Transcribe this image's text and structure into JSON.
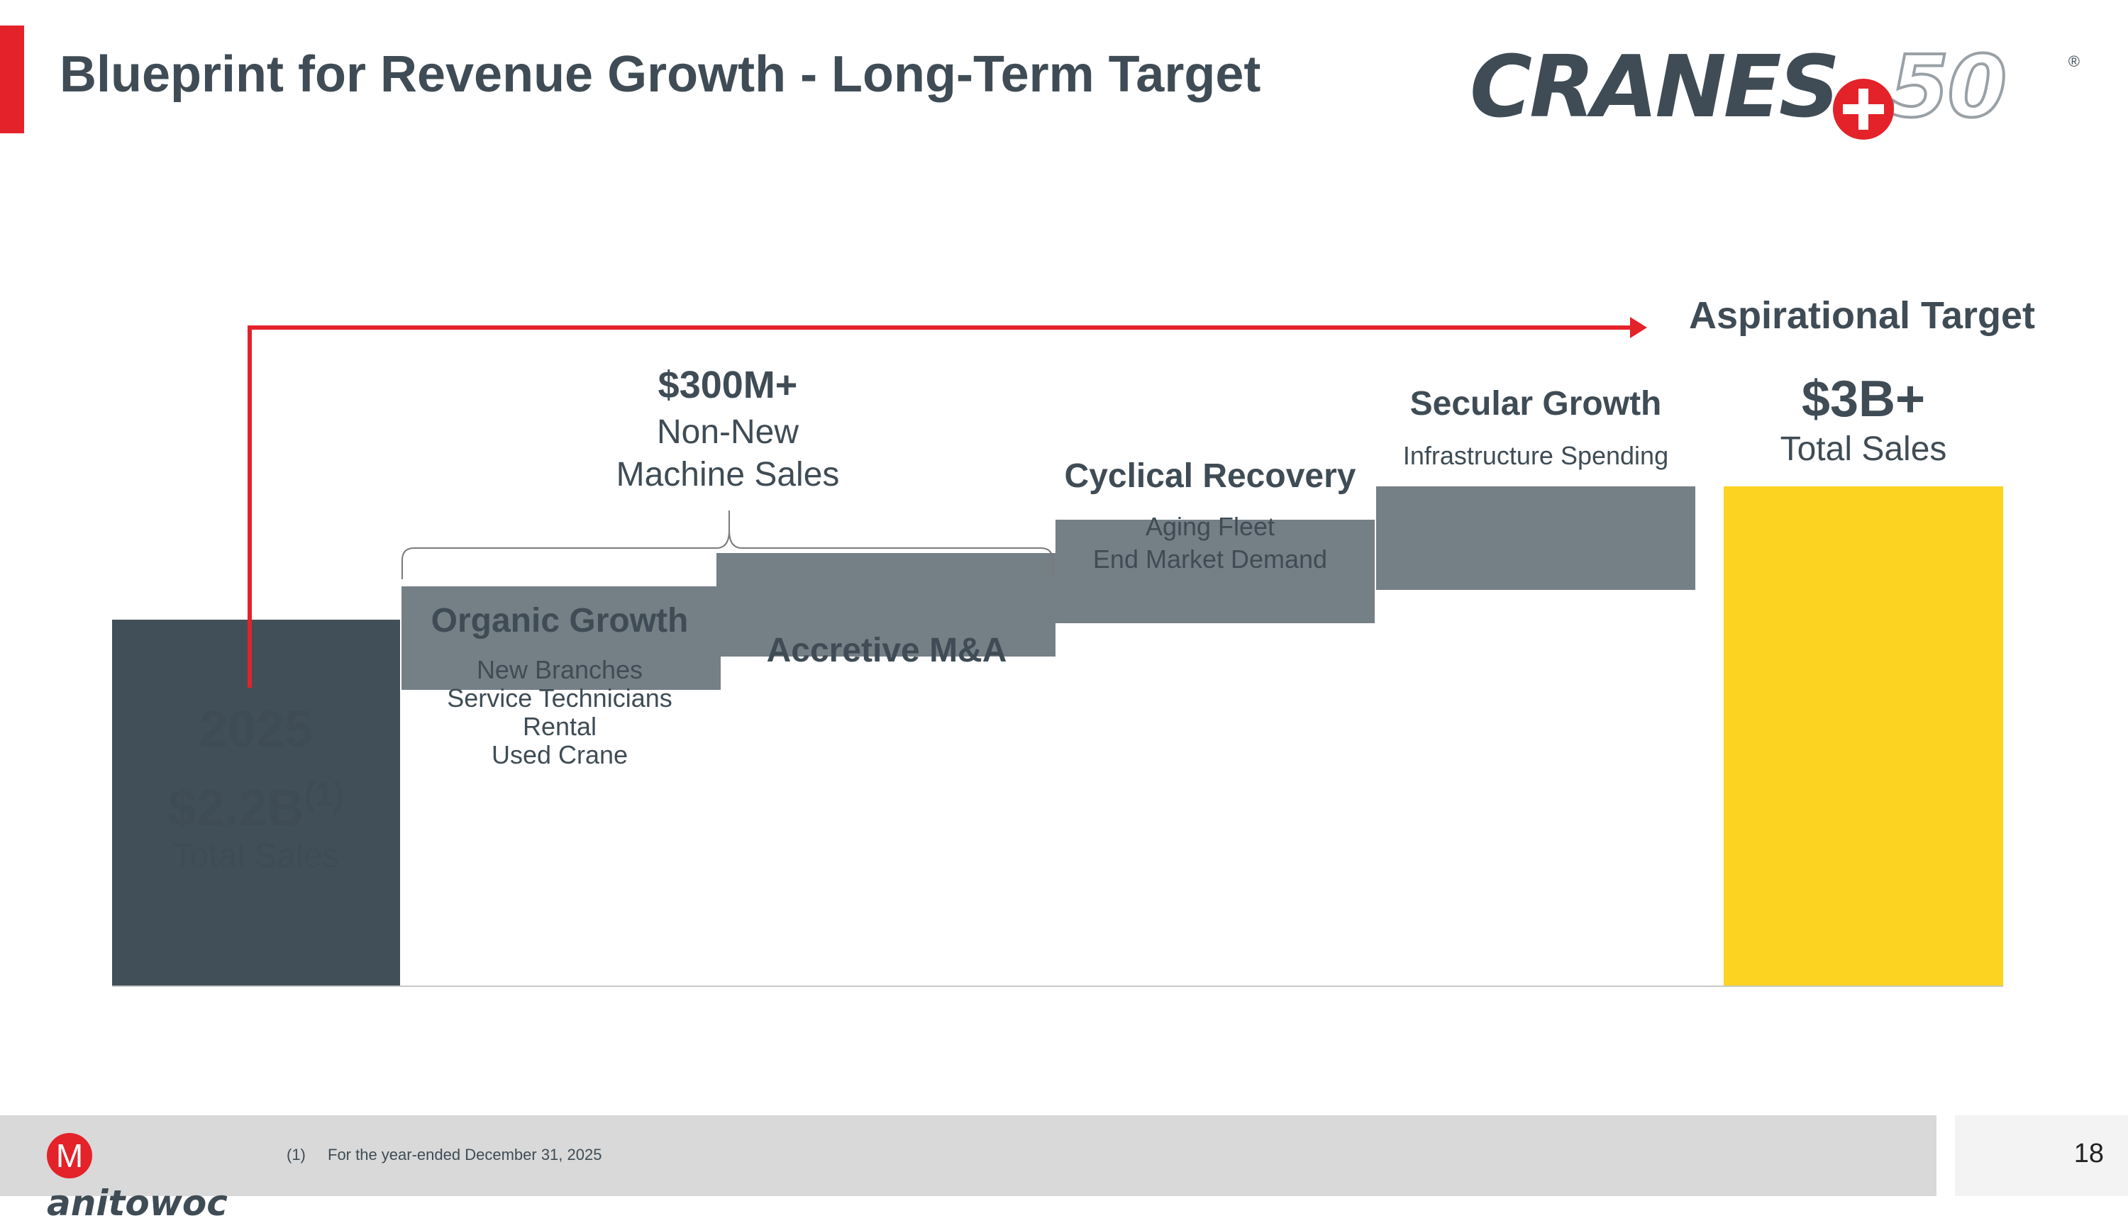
{
  "title": "Blueprint for Revenue Growth - Long-Term Target",
  "logo": {
    "text": "CRANES",
    "number": "50",
    "reg": "®"
  },
  "chart_data": {
    "type": "bar",
    "title": "",
    "colors": {
      "start": "#414f58",
      "step": "#757f86",
      "target": "#fcd321",
      "arrow": "#e42229"
    },
    "bars": [
      {
        "key": "start",
        "kind": "total",
        "value": 2.2,
        "label": "2025",
        "amount": "$2.2B",
        "superscript": "(1)",
        "caption": "Total Sales"
      },
      {
        "key": "organic",
        "kind": "step",
        "label": "Organic Growth",
        "details": [
          "New Branches",
          "Service Technicians",
          "Rental",
          "Used Crane"
        ]
      },
      {
        "key": "ma",
        "kind": "step",
        "label": "Accretive M&A",
        "details": []
      },
      {
        "key": "cyclical",
        "kind": "step",
        "label": "Cyclical Recovery",
        "details": [
          "Aging Fleet",
          "End Market Demand"
        ]
      },
      {
        "key": "secular",
        "kind": "step",
        "label": "Secular Growth",
        "details": [
          "Infrastructure Spending"
        ]
      },
      {
        "key": "target",
        "kind": "total",
        "value": 3.0,
        "label": "Aspirational Target",
        "amount": "$3B+",
        "caption": "Total Sales"
      }
    ],
    "bracket": {
      "amount": "$300M+",
      "line1": "Non-New",
      "line2": "Machine Sales",
      "spans": [
        "organic",
        "ma"
      ]
    }
  },
  "footer": {
    "brand": "anitowoc",
    "brand_initial": "M",
    "footnote_num": "(1)",
    "footnote": "For the year-ended December 31, 2025",
    "page": "18"
  }
}
